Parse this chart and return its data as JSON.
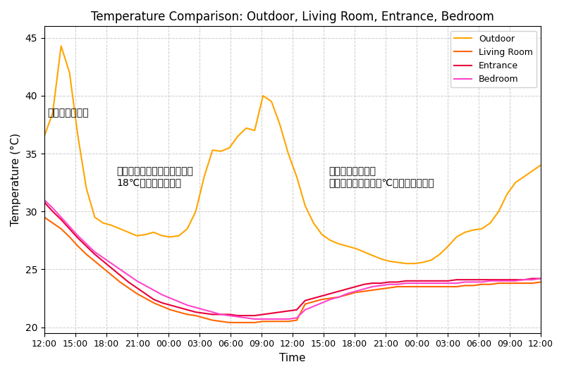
{
  "title": "Temperature Comparison: Outdoor, Living Room, Entrance, Bedroom",
  "xlabel": "Time",
  "ylabel": "Temperature (°C)",
  "ylim": [
    19.5,
    46
  ],
  "yticks": [
    20,
    25,
    30,
    35,
    40,
    45
  ],
  "time_labels": [
    "12:00",
    "15:00",
    "18:00",
    "21:00",
    "00:00",
    "03:00",
    "06:00",
    "09:00",
    "12:00",
    "15:00",
    "18:00",
    "21:00",
    "00:00",
    "03:00",
    "06:00",
    "09:00",
    "12:00"
  ],
  "outdoor": [
    36.5,
    38.5,
    44.3,
    42.0,
    36.5,
    32.0,
    29.5,
    29.0,
    28.8,
    28.5,
    28.2,
    27.9,
    28.0,
    28.2,
    27.9,
    27.8,
    27.9,
    28.5,
    30.0,
    33.0,
    35.3,
    35.2,
    35.5,
    36.5,
    37.2,
    37.0,
    40.0,
    39.5,
    37.5,
    35.0,
    33.0,
    30.5,
    29.0,
    28.0,
    27.5,
    27.2,
    27.0,
    26.8,
    26.5,
    26.2,
    25.9,
    25.7,
    25.6,
    25.5,
    25.5,
    25.6,
    25.8,
    26.3,
    27.0,
    27.8,
    28.2,
    28.4,
    28.5,
    29.0,
    30.0,
    31.5,
    32.5,
    33.0,
    33.5,
    34.0
  ],
  "living_room": [
    29.5,
    29.0,
    28.5,
    27.8,
    27.0,
    26.3,
    25.7,
    25.1,
    24.5,
    23.9,
    23.4,
    22.9,
    22.5,
    22.1,
    21.8,
    21.5,
    21.3,
    21.1,
    21.0,
    20.8,
    20.6,
    20.5,
    20.4,
    20.4,
    20.4,
    20.4,
    20.5,
    20.5,
    20.5,
    20.5,
    20.6,
    22.0,
    22.2,
    22.4,
    22.5,
    22.6,
    22.8,
    23.0,
    23.1,
    23.2,
    23.3,
    23.4,
    23.5,
    23.5,
    23.5,
    23.5,
    23.5,
    23.5,
    23.5,
    23.5,
    23.6,
    23.6,
    23.7,
    23.7,
    23.8,
    23.8,
    23.8,
    23.8,
    23.8,
    23.9
  ],
  "entrance": [
    30.8,
    30.0,
    29.3,
    28.5,
    27.7,
    27.0,
    26.3,
    25.7,
    25.1,
    24.5,
    23.9,
    23.4,
    22.9,
    22.4,
    22.1,
    21.9,
    21.7,
    21.5,
    21.3,
    21.2,
    21.1,
    21.1,
    21.1,
    21.0,
    21.0,
    21.0,
    21.1,
    21.2,
    21.3,
    21.4,
    21.5,
    22.3,
    22.5,
    22.7,
    22.9,
    23.1,
    23.3,
    23.5,
    23.7,
    23.8,
    23.8,
    23.9,
    23.9,
    24.0,
    24.0,
    24.0,
    24.0,
    24.0,
    24.0,
    24.1,
    24.1,
    24.1,
    24.1,
    24.1,
    24.1,
    24.1,
    24.1,
    24.1,
    24.2,
    24.2
  ],
  "bedroom": [
    31.0,
    30.3,
    29.5,
    28.7,
    27.9,
    27.2,
    26.5,
    26.0,
    25.5,
    25.0,
    24.5,
    24.0,
    23.6,
    23.2,
    22.8,
    22.5,
    22.2,
    21.9,
    21.7,
    21.5,
    21.3,
    21.1,
    21.0,
    20.9,
    20.8,
    20.7,
    20.7,
    20.7,
    20.7,
    20.7,
    20.8,
    21.5,
    21.8,
    22.1,
    22.4,
    22.6,
    22.9,
    23.1,
    23.3,
    23.5,
    23.6,
    23.7,
    23.7,
    23.8,
    23.8,
    23.8,
    23.8,
    23.8,
    23.8,
    23.8,
    23.9,
    23.9,
    23.9,
    24.0,
    24.0,
    24.0,
    24.0,
    24.1,
    24.1,
    24.2
  ],
  "colors": {
    "outdoor": "#FFA500",
    "living_room": "#FF6600",
    "entrance": "#E8003C",
    "bedroom": "#FF44CC"
  },
  "ann0_text": "全エアコン停止",
  "ann1_text": "床下エアコン、２階エアコン\n18℃設定・風量自動",
  "ann2_text": "床下エアコン停止\n２階エアコン　２４℃設定・風量自動",
  "background_color": "#ffffff",
  "grid_color": "#cccccc",
  "grid_linestyle": "--"
}
